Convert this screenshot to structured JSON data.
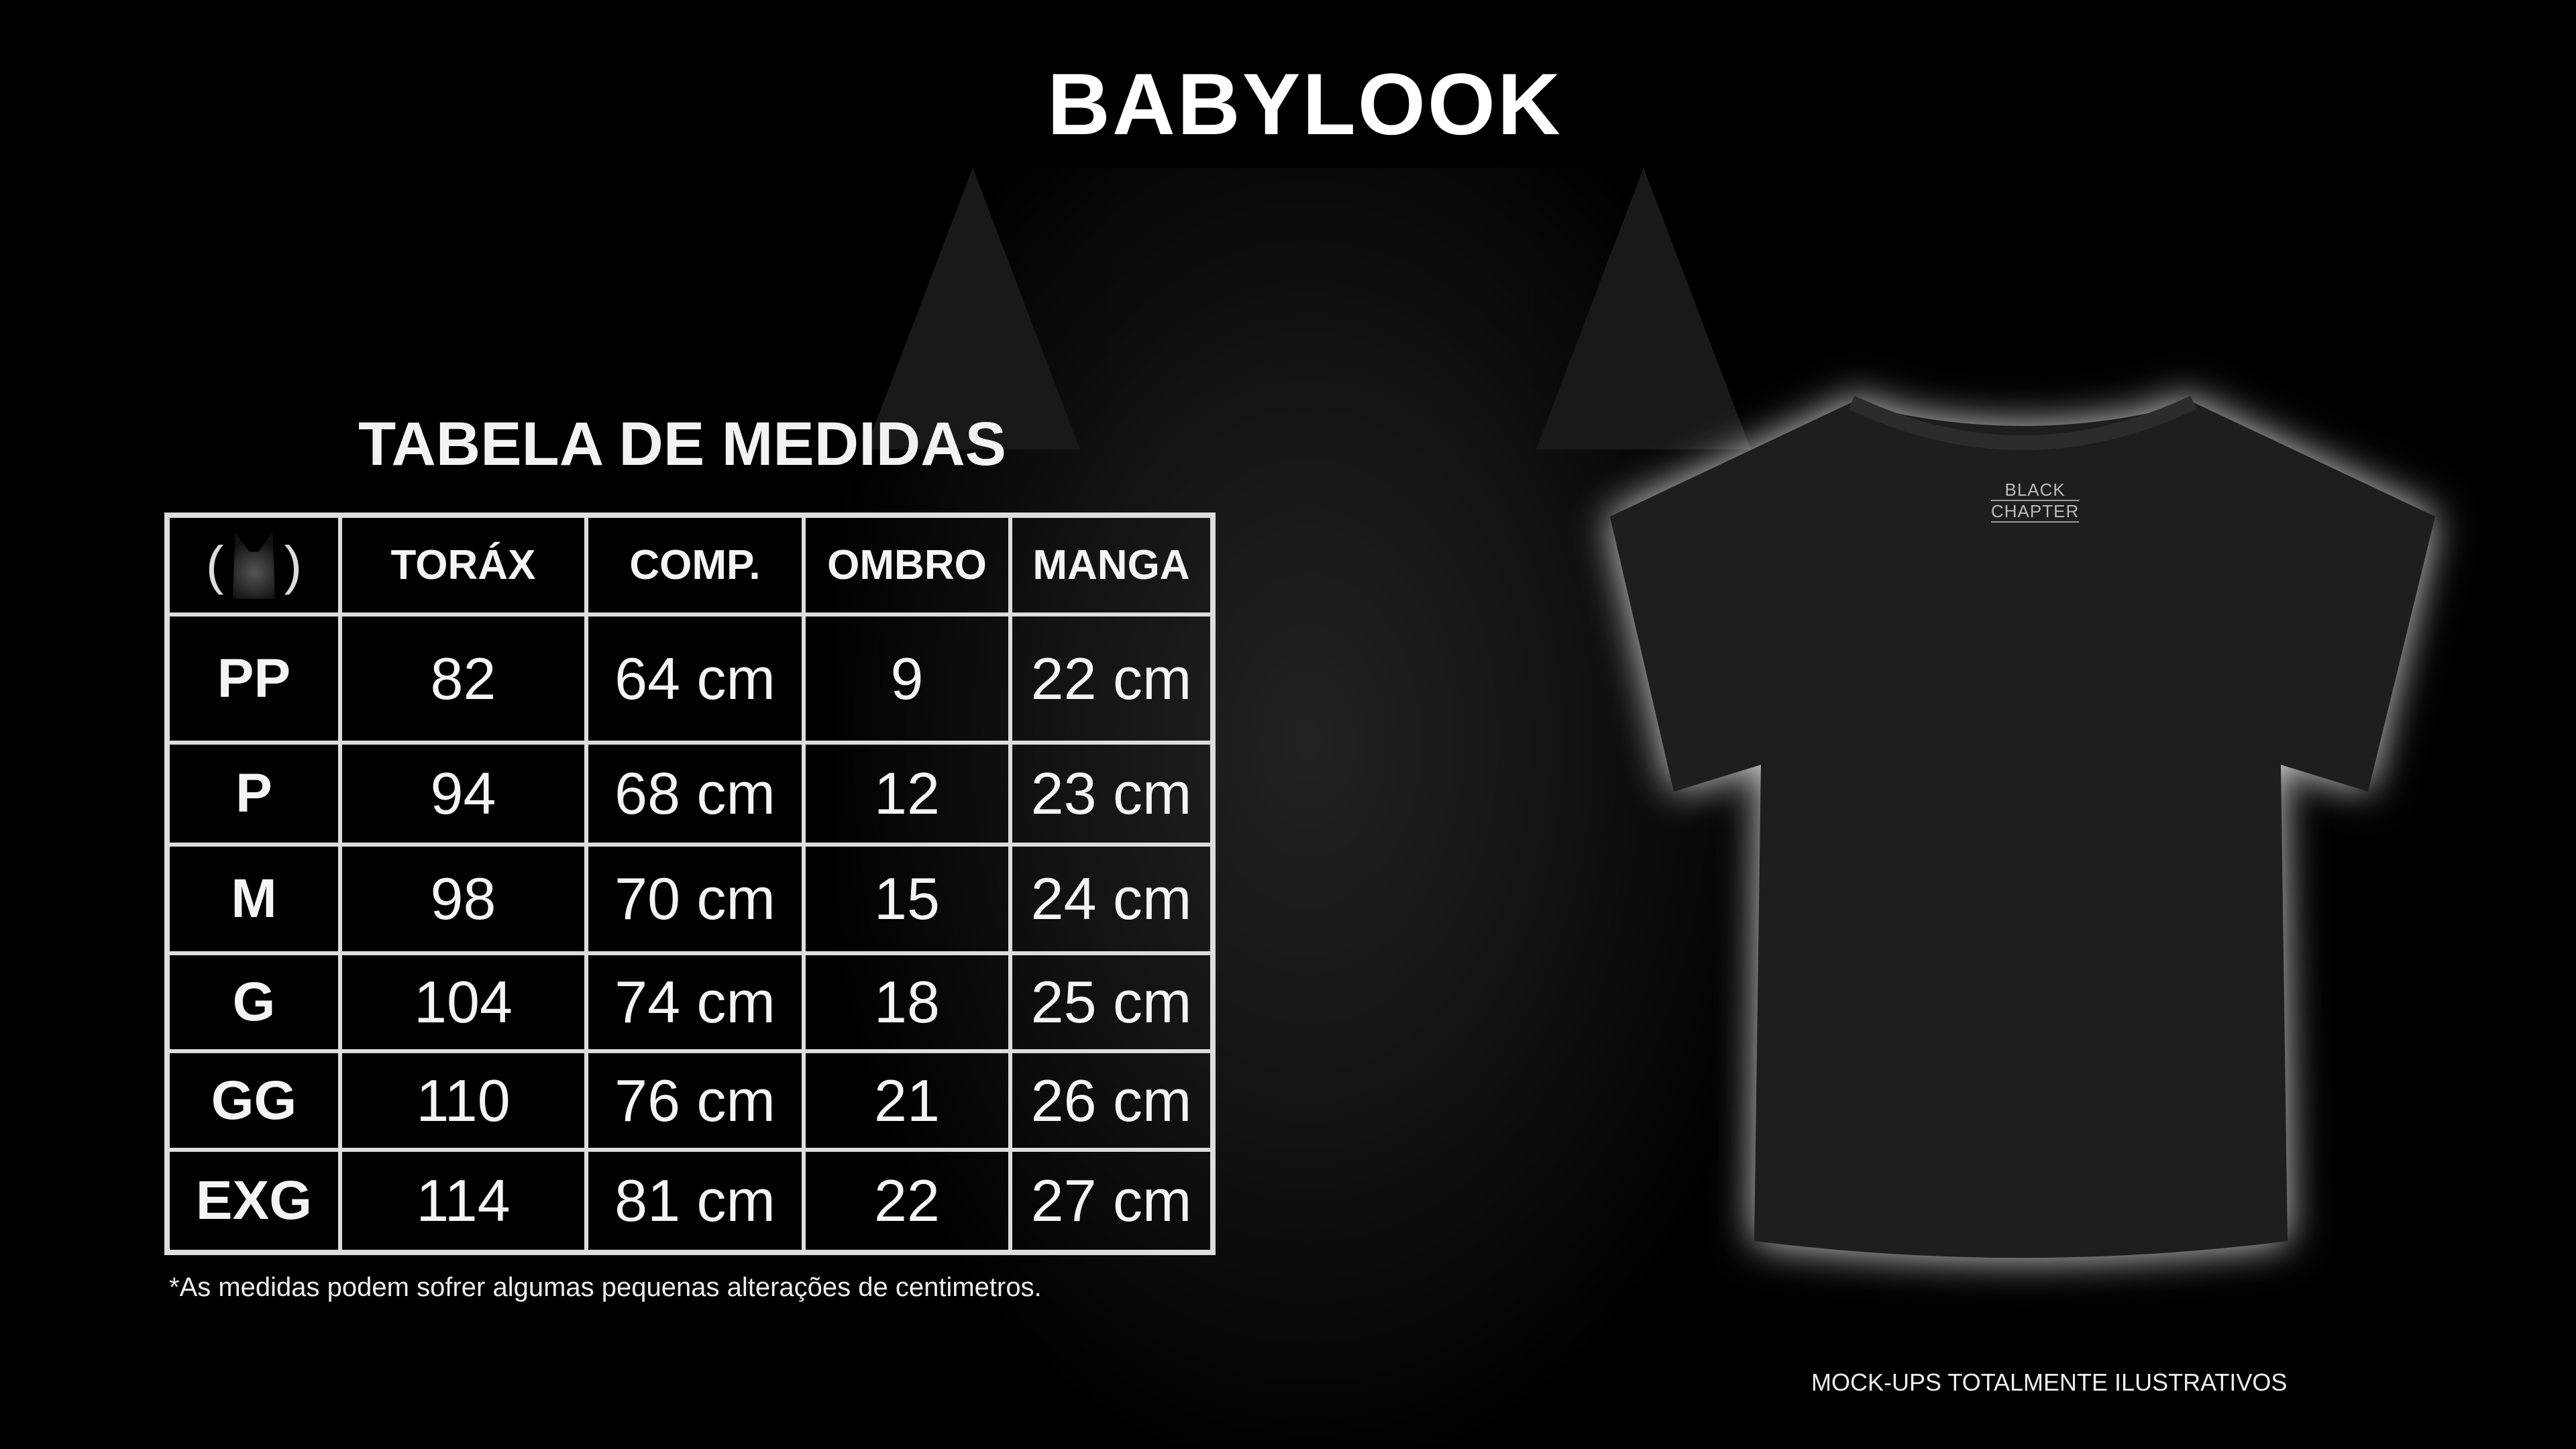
{
  "title": "BABYLOOK",
  "subtitle": "TABELA DE MEDIDAS",
  "table": {
    "logo_icon": "cat-logo-icon",
    "headers": [
      "TORÁX",
      "COMP.",
      "OMBRO",
      "MANGA"
    ],
    "rows": [
      {
        "size": "PP",
        "torax": "82",
        "comp": "64 cm",
        "ombro": "9",
        "manga": "22 cm"
      },
      {
        "size": "P",
        "torax": "94",
        "comp": "68 cm",
        "ombro": "12",
        "manga": "23 cm"
      },
      {
        "size": "M",
        "torax": "98",
        "comp": "70 cm",
        "ombro": "15",
        "manga": "24 cm"
      },
      {
        "size": "G",
        "torax": "104",
        "comp": "74 cm",
        "ombro": "18",
        "manga": "25 cm"
      },
      {
        "size": "GG",
        "torax": "110",
        "comp": "76 cm",
        "ombro": "21",
        "manga": "26 cm"
      },
      {
        "size": "EXG",
        "torax": "114",
        "comp": "81 cm",
        "ombro": "22",
        "manga": "27 cm"
      }
    ]
  },
  "footnote": "*As medidas podem sofrer algumas pequenas alterações de centimetros.",
  "shirt": {
    "brand_line1": "BLACK",
    "brand_line2": "CHAPTER",
    "color": "#1e1e1e"
  },
  "disclaimer": "MOCK-UPS TOTALMENTE ILUSTRATIVOS"
}
